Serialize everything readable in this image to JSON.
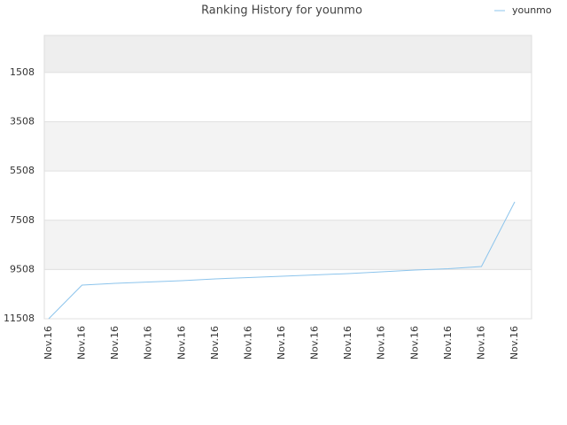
{
  "chart_data": {
    "type": "line",
    "title": "Ranking History for younmo",
    "categories": [
      "Nov.16",
      "Nov.16",
      "Nov.16",
      "Nov.16",
      "Nov.16",
      "Nov.16",
      "Nov.16",
      "Nov.16",
      "Nov.16",
      "Nov.16",
      "Nov.16",
      "Nov.16",
      "Nov.16",
      "Nov.16",
      "Nov.16"
    ],
    "series": [
      {
        "name": "younmo",
        "color": "#8cc4ec",
        "values": [
          11508,
          10141,
          10069,
          10015,
          9961,
          9890,
          9835,
          9781,
          9727,
          9673,
          9601,
          9530,
          9476,
          9386,
          6760
        ]
      }
    ],
    "ylim": [
      11508,
      0
    ],
    "yticks": [
      1508,
      3508,
      5508,
      7508,
      9508,
      11508
    ],
    "grid": true,
    "legend": "top-right"
  }
}
